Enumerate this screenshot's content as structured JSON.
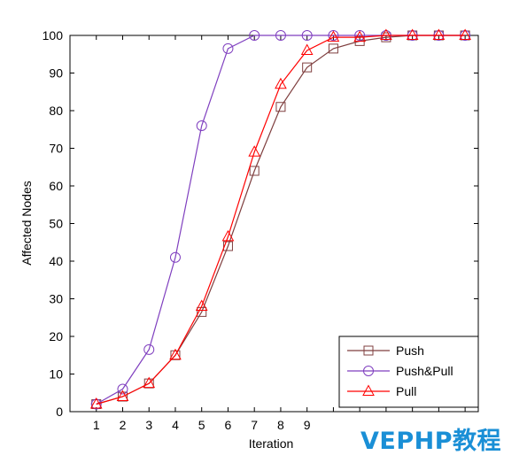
{
  "chart_data": {
    "type": "line",
    "title": "",
    "xlabel": "Iteration",
    "ylabel": "Affected Nodes",
    "x": [
      1,
      2,
      3,
      4,
      5,
      6,
      7,
      8,
      9,
      10,
      11,
      12,
      13,
      14,
      15
    ],
    "xticks": [
      1,
      2,
      3,
      4,
      5,
      6,
      7,
      8,
      9
    ],
    "xlim": [
      0,
      15.5
    ],
    "ylim": [
      0,
      100
    ],
    "yticks": [
      0,
      10,
      20,
      30,
      40,
      50,
      60,
      70,
      80,
      90,
      100
    ],
    "grid": false,
    "legend_position": "bottom-right",
    "series": [
      {
        "name": "Push",
        "color": "#7f3f3f",
        "marker": "square",
        "values": [
          2,
          4,
          7.5,
          15,
          26.5,
          44,
          64,
          81,
          91.5,
          96.5,
          98.5,
          99.5,
          100,
          100,
          100
        ]
      },
      {
        "name": "Push&Pull",
        "color": "#7f3fbf",
        "marker": "circle",
        "values": [
          2,
          6,
          16.5,
          41,
          76,
          96.5,
          100,
          100,
          100,
          100,
          100,
          100,
          100,
          100,
          100
        ]
      },
      {
        "name": "Pull",
        "color": "#ff0000",
        "marker": "triangle",
        "values": [
          2,
          4,
          7.5,
          15,
          28,
          46.5,
          69,
          87,
          96,
          99.5,
          99.5,
          100,
          100,
          100,
          100
        ]
      }
    ]
  },
  "watermark": "VEPHP教程"
}
